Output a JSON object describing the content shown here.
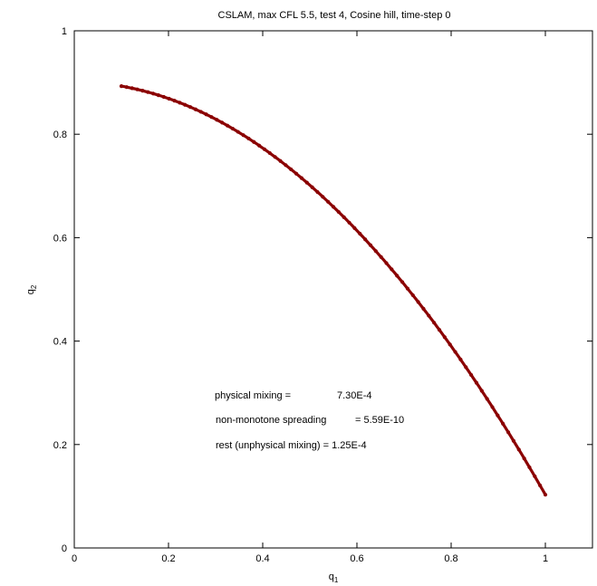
{
  "chart_data": {
    "type": "scatter",
    "title": "CSLAM, max CFL 5.5, test 4, Cosine hill, time-step 0",
    "xlabel": {
      "base": "q",
      "sub": "1"
    },
    "ylabel": {
      "base": "q",
      "sub": "2"
    },
    "xlim": [
      0,
      1.1
    ],
    "ylim": [
      0,
      1
    ],
    "xticks": [
      {
        "value": 0,
        "label": "0"
      },
      {
        "value": 0.2,
        "label": "0.2"
      },
      {
        "value": 0.4,
        "label": "0.4"
      },
      {
        "value": 0.6,
        "label": "0.6"
      },
      {
        "value": 0.8,
        "label": "0.8"
      },
      {
        "value": 1,
        "label": "1"
      }
    ],
    "yticks": [
      {
        "value": 0,
        "label": "0"
      },
      {
        "value": 0.2,
        "label": "0.2"
      },
      {
        "value": 0.4,
        "label": "0.4"
      },
      {
        "value": 0.6,
        "label": "0.6"
      },
      {
        "value": 0.8,
        "label": "0.8"
      },
      {
        "value": 1,
        "label": "1"
      }
    ],
    "grid": false,
    "marker_color": "#8b0000",
    "curve": {
      "x_start": 0.1,
      "x_end": 1.0,
      "y_at_x_start": 0.893,
      "y_at_x_end": 0.103,
      "relation": "q2 = 0.9 - 0.8*q1^2 (approx.)"
    },
    "annotations": [
      {
        "label": "physical mixing =",
        "value": "7.30E-4"
      },
      {
        "label": "non-monotone spreading",
        "value": "= 5.59E-10"
      },
      {
        "label": "rest (unphysical mixing) = 1.25E-4",
        "value": ""
      }
    ]
  }
}
